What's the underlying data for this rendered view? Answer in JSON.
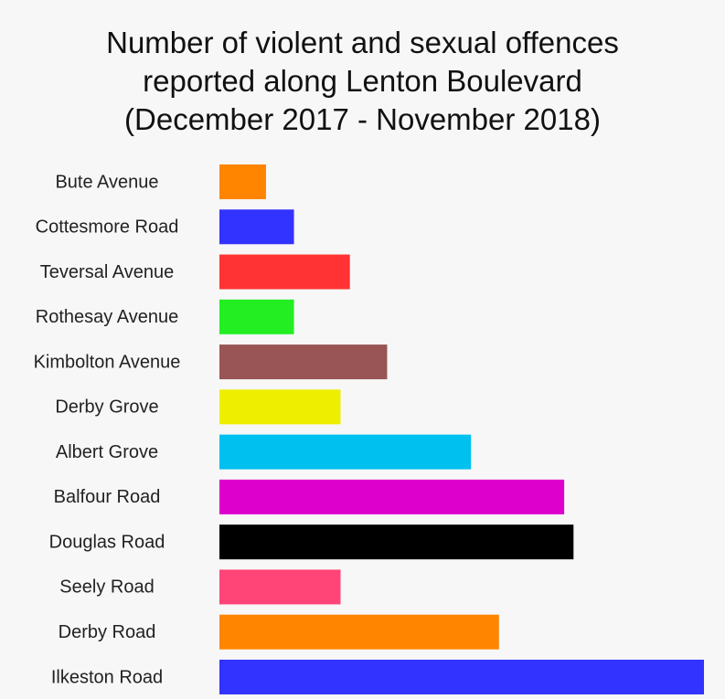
{
  "chart_data": {
    "type": "bar",
    "orientation": "horizontal",
    "title": "Number of violent and sexual offences\nreported along Lenton Boulevard\n(December 2017 - November 2018)",
    "categories": [
      "Bute Avenue",
      "Cottesmore Road",
      "Teversal Avenue",
      "Rothesay Avenue",
      "Kimbolton Avenue",
      "Derby Grove",
      "Albert Grove",
      "Balfour Road",
      "Douglas Road",
      "Seely Road",
      "Derby Road",
      "Ilkeston Road"
    ],
    "values": [
      5,
      8,
      14,
      8,
      18,
      13,
      27,
      37,
      38,
      13,
      30,
      52
    ],
    "colors": [
      "#ff8500",
      "#3333ff",
      "#ff3333",
      "#22ee22",
      "#995555",
      "#eeee00",
      "#00c0f0",
      "#dd00cc",
      "#000000",
      "#ff4477",
      "#ff8500",
      "#3333ff"
    ]
  }
}
